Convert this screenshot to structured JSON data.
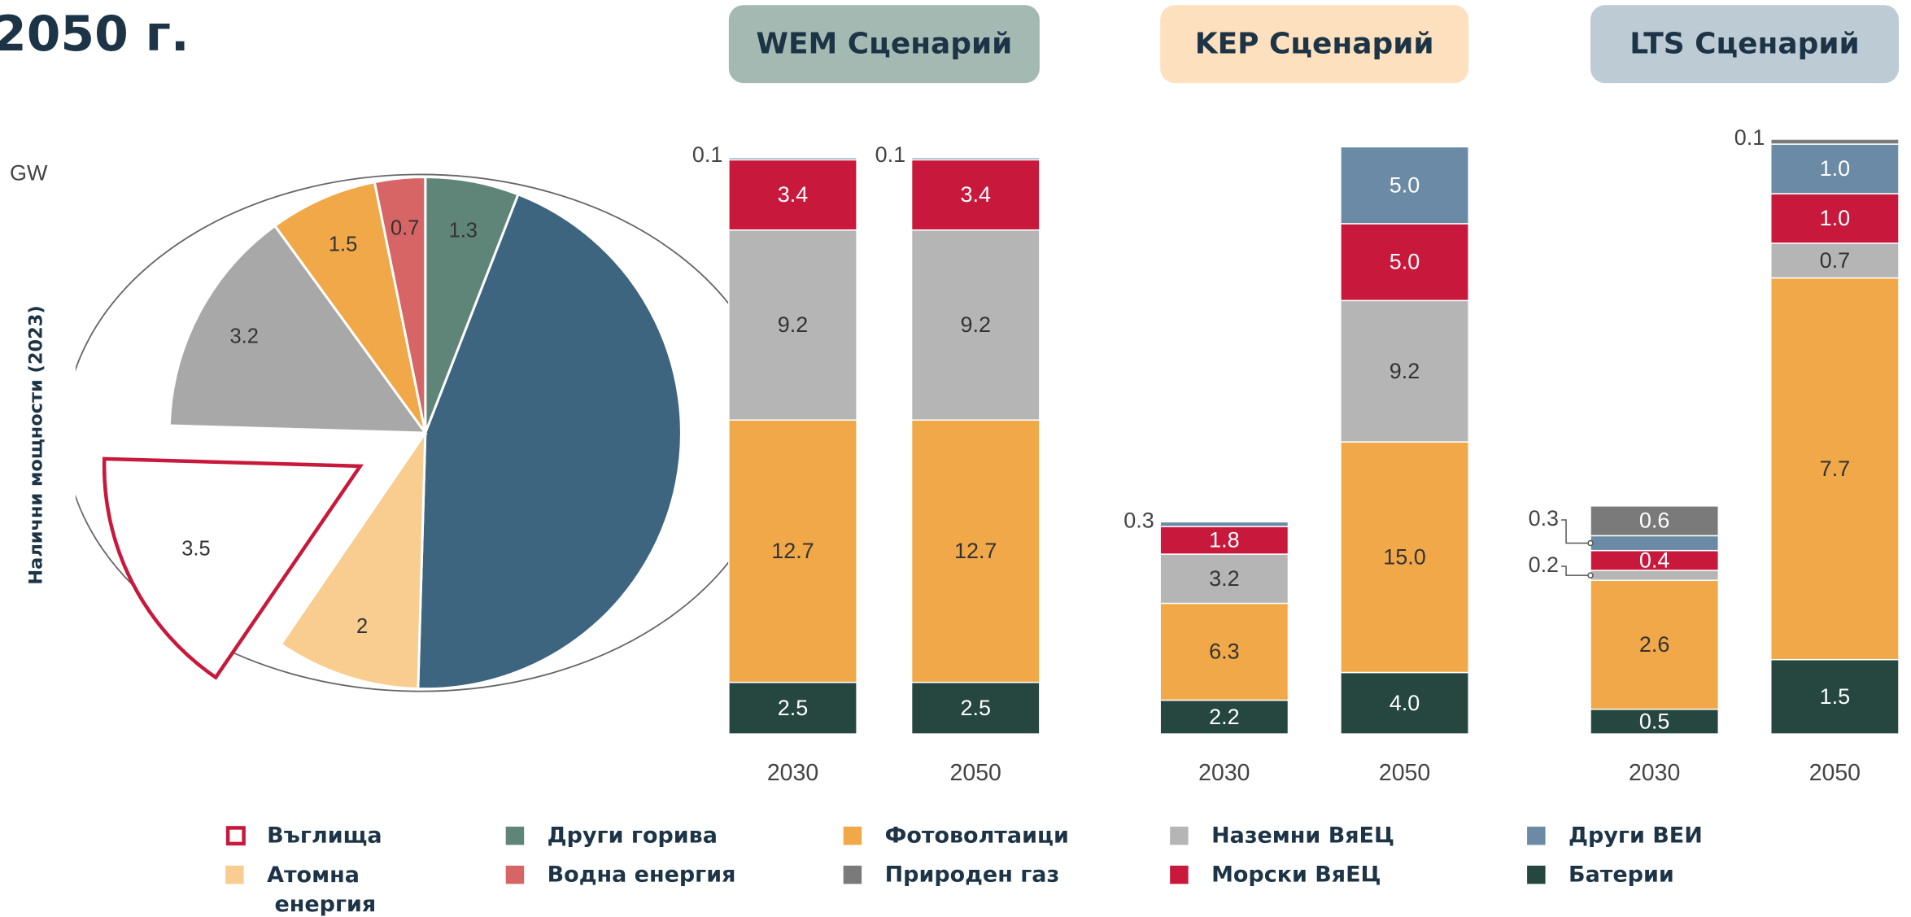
{
  "title": "2050 г.",
  "chart_data": [
    {
      "type": "pie",
      "unit": "GW",
      "ylabel": "Налични мощности (2023)",
      "values": [
        1.3,
        9.8,
        2,
        3.5,
        3.2,
        1.5,
        0.7
      ],
      "value_labels": [
        "1.3",
        null,
        "2",
        "3.5",
        "3.2",
        "1.5",
        "0.7"
      ],
      "colors": [
        "#5e8578",
        "#3e6580",
        "#f8cd8f",
        "#c8193c",
        "#a8a8a8",
        "#f0a848",
        "#d86565"
      ],
      "exploded_outline": 3
    },
    {
      "type": "stacked_bar",
      "categories": [
        "2030",
        "2050",
        "2030",
        "2050",
        "2030",
        "2050"
      ],
      "groups": [
        {
          "name": "WEM Сценарий",
          "color": "#a3b9b1",
          "ylim": [
            0,
            28.8
          ]
        },
        {
          "name": "KEP Сценарий",
          "color": "#fde0bd",
          "ylim": [
            0,
            38.7
          ]
        },
        {
          "name": "LTS Сценарий",
          "color": "#bccbd4",
          "ylim": [
            0,
            12
          ]
        }
      ],
      "stack_order": [
        9,
        4,
        6,
        7,
        8,
        5
      ],
      "series": [
        {
          "name": "Въглища",
          "color": "#c8193c",
          "outline": true,
          "values": [
            null,
            null,
            null,
            null,
            null,
            null
          ],
          "value_labels": [
            null,
            null,
            null,
            null,
            null,
            null
          ]
        },
        {
          "name": "Атомна енергия",
          "color": "#f8cd8f",
          "values": [
            null,
            null,
            null,
            null,
            null,
            null
          ],
          "value_labels": [
            null,
            null,
            null,
            null,
            null,
            null
          ]
        },
        {
          "name": "Други горива",
          "color": "#5e8578",
          "values": [
            null,
            null,
            null,
            null,
            null,
            null
          ],
          "value_labels": [
            null,
            null,
            null,
            null,
            null,
            null
          ]
        },
        {
          "name": "Водна енергия",
          "color": "#d86565",
          "values": [
            null,
            null,
            null,
            null,
            null,
            null
          ],
          "value_labels": [
            null,
            null,
            null,
            null,
            null,
            null
          ]
        },
        {
          "name": "Фотоволтаици",
          "color": "#f0a848",
          "values": [
            12.7,
            12.7,
            6.3,
            15.0,
            2.6,
            7.7
          ],
          "value_labels": [
            "12.7",
            "12.7",
            "6.3",
            "15.0",
            "2.6",
            "7.7"
          ]
        },
        {
          "name": "Природен газ",
          "color": "#7a7a7a",
          "values": [
            null,
            null,
            null,
            null,
            0.6,
            0.1
          ],
          "value_labels": [
            null,
            null,
            null,
            null,
            "0.6",
            "0.1"
          ]
        },
        {
          "name": "Наземни ВяЕЦ",
          "color": "#b5b5b5",
          "values": [
            9.2,
            9.2,
            3.2,
            9.2,
            0.2,
            0.7
          ],
          "value_labels": [
            "9.2",
            "9.2",
            "3.2",
            "9.2",
            "0.2",
            "0.7"
          ]
        },
        {
          "name": "Морски ВяЕЦ",
          "color": "#c8193c",
          "values": [
            3.4,
            3.4,
            1.8,
            5.0,
            0.4,
            1.0
          ],
          "value_labels": [
            "3.4",
            "3.4",
            "1.8",
            "5.0",
            "0.4",
            "1.0"
          ]
        },
        {
          "name": "Други ВЕИ",
          "color": "#6a8aa5",
          "values": [
            0.1,
            0.1,
            0.3,
            5.0,
            0.3,
            1.0
          ],
          "value_labels": [
            "0.1",
            "0.1",
            "0.3",
            "5.0",
            "0.3",
            "1.0"
          ]
        },
        {
          "name": "Батерии",
          "color": "#26473f",
          "values": [
            2.5,
            2.5,
            2.2,
            4.0,
            0.5,
            1.5
          ],
          "value_labels": [
            "2.5",
            "2.5",
            "2.2",
            "4.0",
            "0.5",
            "1.5"
          ]
        }
      ]
    }
  ]
}
